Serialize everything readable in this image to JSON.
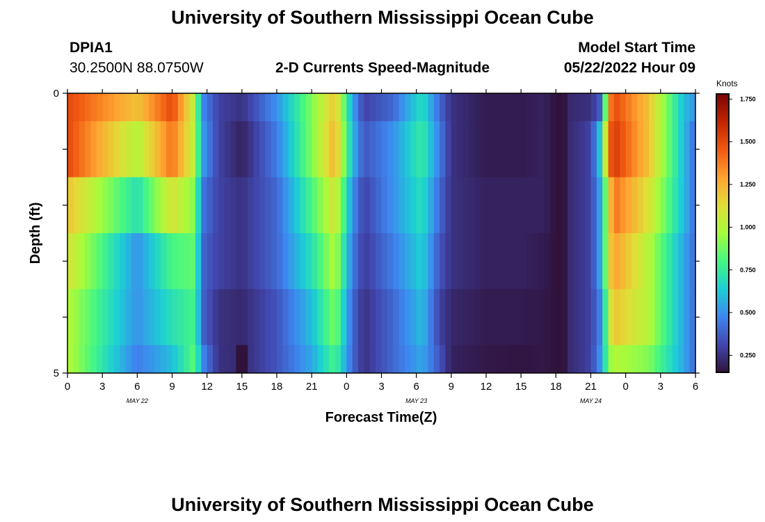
{
  "header": {
    "title": "University of Southern Mississippi Ocean Cube",
    "station_id": "DPIA1",
    "coordinates": "30.2500N  88.0750W",
    "model_start_label": "Model Start Time",
    "model_start_value": "05/22/2022 Hour 09"
  },
  "colors": {
    "colormap": [
      "#30123b",
      "#4146ad",
      "#3e87f0",
      "#1ccfd4",
      "#46f783",
      "#a6fc3b",
      "#e1dd37",
      "#fea331",
      "#ef5911",
      "#c22402",
      "#7a0403"
    ]
  },
  "chart_data": {
    "type": "heatmap",
    "title": "2-D Currents Speed-Magnitude",
    "xlabel": "Forecast Time(Z)",
    "ylabel": "Depth (ft)",
    "ylim": [
      0,
      5
    ],
    "y_ticks": [
      "0",
      "5"
    ],
    "x_ticks": [
      "0",
      "3",
      "6",
      "9",
      "12",
      "15",
      "18",
      "21",
      "0",
      "3",
      "6",
      "9",
      "12",
      "15",
      "18",
      "21",
      "0",
      "3",
      "6"
    ],
    "date_labels": [
      "MAY 22",
      "MAY 23",
      "MAY 24"
    ],
    "colorbar": {
      "label": "Knots",
      "range": [
        0.15,
        1.78
      ],
      "ticks": [
        "0.250",
        "0.500",
        "0.750",
        "1.000",
        "1.250",
        "1.500",
        "1.750"
      ]
    },
    "x_hours": [
      0,
      6,
      9,
      11,
      11.5,
      13,
      15,
      18,
      21,
      23,
      24.5,
      25.5,
      28,
      30.5,
      32,
      33,
      36,
      39,
      41,
      42,
      42.7,
      43,
      45,
      46,
      46.5,
      47,
      50,
      53,
      54
    ],
    "layers": [
      {
        "depth": "0.0-0.5",
        "speed": [
          1.5,
          1.2,
          1.5,
          1.0,
          0.5,
          0.3,
          0.25,
          0.5,
          0.9,
          1.2,
          0.55,
          0.3,
          0.4,
          0.7,
          0.4,
          0.25,
          0.18,
          0.18,
          0.2,
          0.15,
          0.15,
          0.22,
          0.25,
          0.4,
          1.3,
          1.5,
          1.2,
          0.6,
          0.5
        ]
      },
      {
        "depth": "0.5-1.5",
        "speed": [
          1.5,
          1.0,
          1.4,
          1.0,
          0.55,
          0.3,
          0.2,
          0.45,
          0.9,
          1.25,
          0.6,
          0.35,
          0.5,
          0.75,
          0.45,
          0.25,
          0.18,
          0.18,
          0.2,
          0.15,
          0.15,
          0.22,
          0.3,
          0.7,
          1.4,
          1.55,
          1.2,
          0.6,
          0.4
        ]
      },
      {
        "depth": "1.5-2.5",
        "speed": [
          1.2,
          0.7,
          1.1,
          0.9,
          0.45,
          0.3,
          0.25,
          0.4,
          0.8,
          1.1,
          0.5,
          0.3,
          0.5,
          0.7,
          0.4,
          0.25,
          0.2,
          0.2,
          0.2,
          0.15,
          0.15,
          0.22,
          0.3,
          0.6,
          1.1,
          1.4,
          1.1,
          0.6,
          0.4
        ]
      },
      {
        "depth": "2.5-3.5",
        "speed": [
          1.1,
          0.5,
          0.8,
          0.85,
          0.4,
          0.3,
          0.25,
          0.4,
          0.7,
          1.0,
          0.45,
          0.28,
          0.45,
          0.65,
          0.35,
          0.25,
          0.2,
          0.2,
          0.18,
          0.15,
          0.15,
          0.22,
          0.3,
          0.6,
          1.1,
          1.3,
          1.0,
          0.55,
          0.4
        ]
      },
      {
        "depth": "3.5-4.5",
        "speed": [
          1.0,
          0.5,
          0.7,
          0.8,
          0.4,
          0.25,
          0.22,
          0.35,
          0.6,
          0.9,
          0.4,
          0.25,
          0.4,
          0.6,
          0.3,
          0.22,
          0.18,
          0.18,
          0.17,
          0.15,
          0.15,
          0.22,
          0.3,
          0.5,
          1.0,
          1.2,
          1.0,
          0.55,
          0.4
        ]
      },
      {
        "depth": "4.5-5.0",
        "speed": [
          1.0,
          0.45,
          0.6,
          0.85,
          0.5,
          0.25,
          0.22,
          0.35,
          0.55,
          0.8,
          0.4,
          0.25,
          0.4,
          0.55,
          0.35,
          0.2,
          0.17,
          0.16,
          0.17,
          0.15,
          0.15,
          0.22,
          0.3,
          0.55,
          0.9,
          1.0,
          0.9,
          0.55,
          0.4
        ]
      }
    ],
    "low_spot": {
      "hours": [
        14.5,
        15.5
      ],
      "depth": "4.5-5.0",
      "speed": 0.15
    },
    "grid": false
  }
}
